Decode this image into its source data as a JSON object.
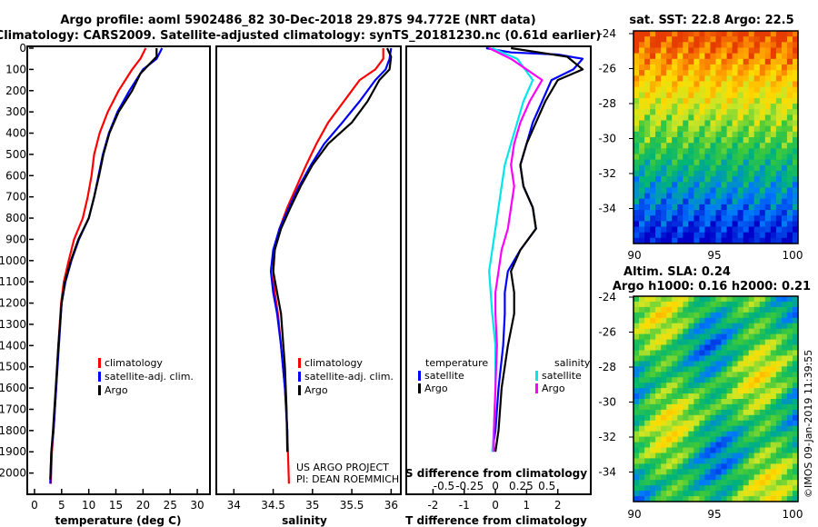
{
  "header": {
    "line1": "Argo profile: aoml 5902486_82 30-Dec-2018 29.87S 94.772E (NRT data)",
    "line2": "Climatology: CARS2009. Satellite-adjusted climatology: synTS_20181230.nc (0.61d earlier)"
  },
  "colors": {
    "climatology": "#ff0000",
    "satellite": "#0000ff",
    "argo": "#000000",
    "cyan": "#00e5ee",
    "magenta": "#ff00ff"
  },
  "chart_data": [
    {
      "type": "line",
      "id": "temperature",
      "xlabel": "temperature (deg C)",
      "xlim": [
        -1,
        32
      ],
      "ylim": [
        2100,
        0
      ],
      "xticks": [
        "0",
        "5",
        "10",
        "15",
        "20",
        "25",
        "30"
      ],
      "yticks": [
        "0",
        "100",
        "200",
        "300",
        "400",
        "500",
        "600",
        "700",
        "800",
        "900",
        "1000",
        "1100",
        "1200",
        "1300",
        "1400",
        "1500",
        "1600",
        "1700",
        "1800",
        "1900",
        "2000"
      ],
      "legend": [
        "climatology",
        "satellite-adj. clim.",
        "Argo"
      ],
      "series": [
        {
          "name": "climatology",
          "color": "#ff0000",
          "points": [
            [
              20.5,
              0
            ],
            [
              19.5,
              50
            ],
            [
              18,
              100
            ],
            [
              15.5,
              200
            ],
            [
              13.5,
              300
            ],
            [
              12,
              400
            ],
            [
              11,
              500
            ],
            [
              10.5,
              600
            ],
            [
              9.8,
              700
            ],
            [
              8.9,
              800
            ],
            [
              7.3,
              900
            ],
            [
              6.3,
              1000
            ],
            [
              5.4,
              1100
            ],
            [
              4.9,
              1200
            ],
            [
              4.4,
              1400
            ],
            [
              4,
              1600
            ],
            [
              3.5,
              1800
            ],
            [
              3.2,
              1900
            ],
            [
              3.0,
              2050
            ]
          ]
        },
        {
          "name": "satellite-adj. clim.",
          "color": "#0000ff",
          "points": [
            [
              23.5,
              0
            ],
            [
              22.5,
              50
            ],
            [
              20,
              100
            ],
            [
              17.5,
              200
            ],
            [
              15.3,
              300
            ],
            [
              13.7,
              400
            ],
            [
              12.6,
              500
            ],
            [
              11.8,
              600
            ],
            [
              11,
              700
            ],
            [
              10,
              800
            ],
            [
              8.2,
              900
            ],
            [
              6.8,
              1000
            ],
            [
              5.7,
              1100
            ],
            [
              5,
              1200
            ],
            [
              4.5,
              1400
            ],
            [
              4,
              1600
            ],
            [
              3.5,
              1800
            ],
            [
              3.1,
              1900
            ],
            [
              2.9,
              2050
            ]
          ]
        },
        {
          "name": "Argo",
          "color": "#000000",
          "points": [
            [
              22.5,
              0
            ],
            [
              22.5,
              40
            ],
            [
              21,
              80
            ],
            [
              19.5,
              120
            ],
            [
              18,
              200
            ],
            [
              15.5,
              300
            ],
            [
              13.8,
              400
            ],
            [
              12.7,
              500
            ],
            [
              11.9,
              600
            ],
            [
              11,
              700
            ],
            [
              10,
              800
            ],
            [
              8.1,
              900
            ],
            [
              6.7,
              1000
            ],
            [
              5.6,
              1100
            ],
            [
              5,
              1200
            ],
            [
              4.4,
              1400
            ],
            [
              3.9,
              1600
            ],
            [
              3.4,
              1800
            ],
            [
              3.1,
              1900
            ],
            [
              2.9,
              2030
            ]
          ]
        }
      ]
    },
    {
      "type": "line",
      "id": "salinity",
      "xlabel": "salinity",
      "xlim": [
        33.8,
        36.1
      ],
      "ylim": [
        2100,
        0
      ],
      "xticks": [
        "34",
        "34.5",
        "35",
        "35.5",
        "36"
      ],
      "legend": [
        "climatology",
        "satellite-adj. clim.",
        "Argo"
      ],
      "credit": [
        "US ARGO PROJECT",
        "PI: DEAN ROEMMICH"
      ],
      "series": [
        {
          "name": "climatology",
          "color": "#ff0000",
          "points": [
            [
              35.9,
              0
            ],
            [
              35.9,
              50
            ],
            [
              35.8,
              100
            ],
            [
              35.6,
              150
            ],
            [
              35.4,
              250
            ],
            [
              35.2,
              350
            ],
            [
              35.05,
              450
            ],
            [
              34.92,
              550
            ],
            [
              34.8,
              650
            ],
            [
              34.68,
              750
            ],
            [
              34.58,
              850
            ],
            [
              34.52,
              950
            ],
            [
              34.5,
              1050
            ],
            [
              34.52,
              1150
            ],
            [
              34.56,
              1250
            ],
            [
              34.6,
              1400
            ],
            [
              34.65,
              1600
            ],
            [
              34.68,
              1800
            ],
            [
              34.7,
              2050
            ]
          ]
        },
        {
          "name": "satellite-adj. clim.",
          "color": "#0000ff",
          "points": [
            [
              36.0,
              0
            ],
            [
              35.98,
              50
            ],
            [
              35.93,
              100
            ],
            [
              35.8,
              150
            ],
            [
              35.6,
              250
            ],
            [
              35.38,
              350
            ],
            [
              35.15,
              450
            ],
            [
              34.98,
              550
            ],
            [
              34.83,
              650
            ],
            [
              34.7,
              750
            ],
            [
              34.58,
              850
            ],
            [
              34.5,
              950
            ],
            [
              34.47,
              1050
            ],
            [
              34.5,
              1150
            ],
            [
              34.55,
              1250
            ],
            [
              34.6,
              1400
            ],
            [
              34.65,
              1600
            ],
            [
              34.68,
              1800
            ],
            [
              34.68,
              1900
            ]
          ]
        },
        {
          "name": "Argo",
          "color": "#000000",
          "points": [
            [
              35.95,
              0
            ],
            [
              36.0,
              40
            ],
            [
              35.98,
              100
            ],
            [
              35.85,
              150
            ],
            [
              35.7,
              250
            ],
            [
              35.5,
              350
            ],
            [
              35.2,
              450
            ],
            [
              35.0,
              550
            ],
            [
              34.85,
              650
            ],
            [
              34.72,
              750
            ],
            [
              34.6,
              850
            ],
            [
              34.52,
              950
            ],
            [
              34.5,
              1050
            ],
            [
              34.55,
              1150
            ],
            [
              34.6,
              1250
            ],
            [
              34.62,
              1350
            ],
            [
              34.65,
              1500
            ],
            [
              34.67,
              1700
            ],
            [
              34.68,
              1900
            ]
          ]
        }
      ]
    },
    {
      "type": "line",
      "id": "difference",
      "xlabel": "T difference from climatology",
      "s_title": "S difference from climatology",
      "xlim": [
        -2.8,
        3.0
      ],
      "ylim": [
        2100,
        0
      ],
      "xticks": [
        "-2",
        "-1",
        "0",
        "1",
        "2"
      ],
      "sticks": [
        "-0.5",
        "-0.25",
        "0",
        "0.25",
        "0.5"
      ],
      "legend_left_title": "temperature",
      "legend_right_title": "salinity",
      "legend_left": [
        "satellite",
        "Argo"
      ],
      "legend_right": [
        "satellite",
        "Argo"
      ],
      "series": [
        {
          "name": "T satellite",
          "color": "#0000ff",
          "points": [
            [
              -0.3,
              0
            ],
            [
              0.5,
              20
            ],
            [
              2,
              30
            ],
            [
              2.8,
              50
            ],
            [
              2.5,
              100
            ],
            [
              1.8,
              150
            ],
            [
              1.5,
              250
            ],
            [
              1.2,
              350
            ],
            [
              1.0,
              450
            ],
            [
              0.8,
              550
            ],
            [
              0.9,
              650
            ],
            [
              1.2,
              750
            ],
            [
              1.3,
              850
            ],
            [
              0.8,
              950
            ],
            [
              0.4,
              1050
            ],
            [
              0.3,
              1150
            ],
            [
              0.3,
              1250
            ],
            [
              0.25,
              1400
            ],
            [
              0.1,
              1600
            ],
            [
              0.0,
              1800
            ],
            [
              -0.1,
              1900
            ]
          ]
        },
        {
          "name": "T Argo",
          "color": "#000000",
          "points": [
            [
              0.5,
              0
            ],
            [
              2.3,
              40
            ],
            [
              2.8,
              100
            ],
            [
              2.0,
              150
            ],
            [
              1.6,
              250
            ],
            [
              1.3,
              350
            ],
            [
              1.0,
              450
            ],
            [
              0.8,
              550
            ],
            [
              0.9,
              650
            ],
            [
              1.2,
              750
            ],
            [
              1.3,
              850
            ],
            [
              0.8,
              950
            ],
            [
              0.5,
              1050
            ],
            [
              0.6,
              1150
            ],
            [
              0.6,
              1250
            ],
            [
              0.4,
              1400
            ],
            [
              0.2,
              1600
            ],
            [
              0.1,
              1800
            ],
            [
              0.0,
              1900
            ]
          ]
        },
        {
          "name": "S satellite",
          "color": "#00e5ee",
          "points": [
            [
              -0.1,
              0
            ],
            [
              0.7,
              50
            ],
            [
              1.2,
              150
            ],
            [
              0.9,
              250
            ],
            [
              0.7,
              350
            ],
            [
              0.5,
              450
            ],
            [
              0.3,
              550
            ],
            [
              0.2,
              650
            ],
            [
              0.1,
              750
            ],
            [
              0.0,
              850
            ],
            [
              -0.1,
              950
            ],
            [
              -0.2,
              1050
            ],
            [
              -0.15,
              1150
            ],
            [
              -0.1,
              1250
            ],
            [
              0.0,
              1400
            ],
            [
              0.0,
              1600
            ],
            [
              -0.05,
              1800
            ],
            [
              -0.1,
              1900
            ]
          ]
        },
        {
          "name": "S Argo",
          "color": "#ff00ff",
          "points": [
            [
              -0.2,
              0
            ],
            [
              0.5,
              50
            ],
            [
              1.5,
              150
            ],
            [
              1.1,
              250
            ],
            [
              0.8,
              350
            ],
            [
              0.6,
              450
            ],
            [
              0.5,
              550
            ],
            [
              0.6,
              650
            ],
            [
              0.5,
              750
            ],
            [
              0.4,
              850
            ],
            [
              0.2,
              950
            ],
            [
              0.1,
              1050
            ],
            [
              0.0,
              1150
            ],
            [
              0.0,
              1250
            ],
            [
              0.05,
              1400
            ],
            [
              0.0,
              1600
            ],
            [
              -0.05,
              1800
            ],
            [
              -0.05,
              1900
            ]
          ]
        }
      ]
    }
  ],
  "maps": {
    "sst_title": "sat. SST: 22.8 Argo: 22.5",
    "sla_title1": "Altim. SLA: 0.24",
    "sla_title2": "Argo h1000: 0.16 h2000: 0.21",
    "lat_ticks": [
      "-24",
      "-26",
      "-28",
      "-30",
      "-32",
      "-34"
    ],
    "lon_ticks": [
      "90",
      "95",
      "100"
    ],
    "credit": "©IMOS 09-Jan-2019 11:39:55"
  }
}
